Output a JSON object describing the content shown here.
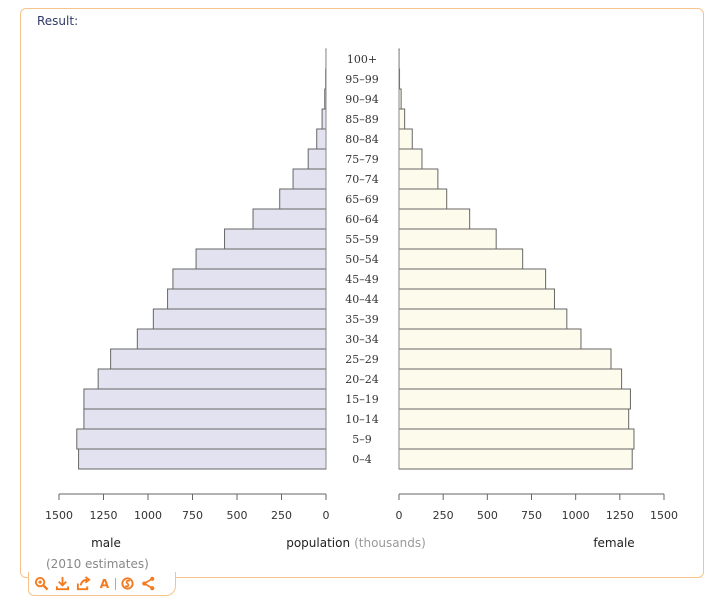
{
  "pod": {
    "result_label": "Result:"
  },
  "chart_data": {
    "type": "bar",
    "subtype": "population-pyramid",
    "categories": [
      "0–4",
      "5–9",
      "10–14",
      "15–19",
      "20–24",
      "25–29",
      "30–34",
      "35–39",
      "40–44",
      "45–49",
      "50–54",
      "55–59",
      "60–64",
      "65–69",
      "70–74",
      "75–79",
      "80–84",
      "85–89",
      "90–94",
      "95–99",
      "100+"
    ],
    "series": [
      {
        "name": "male",
        "color": "#e3e2f0",
        "values": [
          1390,
          1400,
          1360,
          1360,
          1280,
          1210,
          1060,
          970,
          890,
          860,
          730,
          570,
          410,
          260,
          185,
          100,
          52,
          22,
          7,
          2,
          0.3
        ]
      },
      {
        "name": "female",
        "color": "#fdfbeb",
        "values": [
          1320,
          1330,
          1300,
          1310,
          1260,
          1200,
          1030,
          950,
          880,
          830,
          700,
          550,
          400,
          270,
          220,
          130,
          75,
          32,
          12,
          3,
          0.7
        ]
      }
    ],
    "xlim": [
      0,
      1500
    ],
    "xticks": [
      "1500",
      "1250",
      "1000",
      "750",
      "500",
      "250",
      "0"
    ],
    "xticks_right": [
      "0",
      "250",
      "500",
      "750",
      "1000",
      "1250",
      "1500"
    ],
    "xlabel": "population",
    "xlabel_unit": "(thousands)",
    "left_label": "male",
    "right_label": "female",
    "note": "(2010 estimates)",
    "bar_stroke": "#666666"
  },
  "toolbar": {
    "accent": "#f37a1f",
    "icons": [
      "zoom-icon",
      "download-icon",
      "share-icon",
      "text-icon",
      "source-icon",
      "share-network-icon"
    ],
    "text_icon_glyph": "A"
  }
}
